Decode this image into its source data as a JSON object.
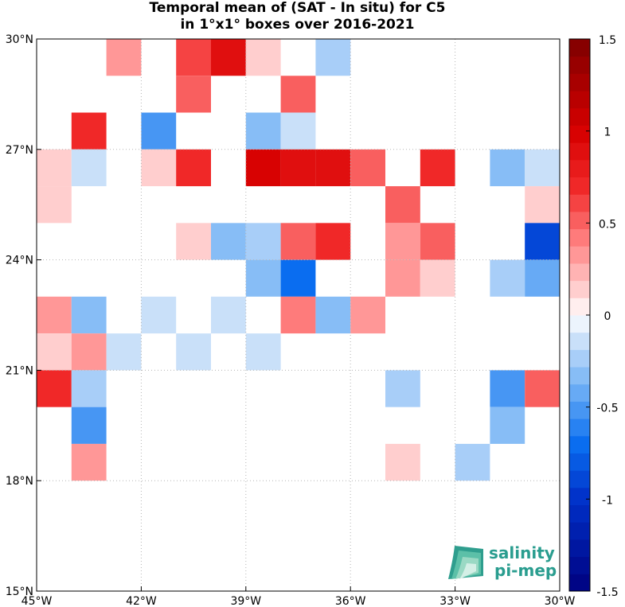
{
  "chart_data": {
    "type": "heatmap",
    "title": "Temporal mean of (SAT - In situ) for C5",
    "subtitle": "in 1°x1° boxes over 2016-2021",
    "x_ticks": [
      "45°W",
      "42°W",
      "39°W",
      "36°W",
      "33°W",
      "30°W"
    ],
    "y_ticks": [
      "30°N",
      "27°N",
      "24°N",
      "21°N",
      "18°N",
      "15°N"
    ],
    "xlim": [
      -45,
      -30
    ],
    "ylim": [
      15,
      30
    ],
    "grid": true,
    "colorbar": {
      "ticks": [
        "1.5",
        "1",
        "0.5",
        "0",
        "-0.5",
        "-1",
        "-1.5"
      ],
      "range": [
        -1.5,
        1.5
      ],
      "levels": 32,
      "low_color": "#00007f",
      "mid_color": "#ffffff",
      "high_color": "#7f0000"
    },
    "cells": [
      {
        "lon": -43,
        "lat": 29,
        "value": 0.3
      },
      {
        "lon": -41,
        "lat": 29,
        "value": 0.65
      },
      {
        "lon": -40,
        "lat": 29,
        "value": 0.85
      },
      {
        "lon": -39,
        "lat": 29,
        "value": 0.15
      },
      {
        "lon": -37,
        "lat": 29,
        "value": -0.2
      },
      {
        "lon": -41,
        "lat": 28,
        "value": 0.5
      },
      {
        "lon": -38,
        "lat": 28,
        "value": 0.5
      },
      {
        "lon": -44,
        "lat": 27,
        "value": 0.7
      },
      {
        "lon": -42,
        "lat": 27,
        "value": -0.55
      },
      {
        "lon": -39,
        "lat": 27,
        "value": -0.3
      },
      {
        "lon": -38,
        "lat": 27,
        "value": -0.12
      },
      {
        "lon": -45,
        "lat": 26,
        "value": 0.15
      },
      {
        "lon": -44,
        "lat": 26,
        "value": -0.12
      },
      {
        "lon": -42,
        "lat": 26,
        "value": 0.15
      },
      {
        "lon": -41,
        "lat": 26,
        "value": 0.7
      },
      {
        "lon": -39,
        "lat": 26,
        "value": 0.95
      },
      {
        "lon": -38,
        "lat": 26,
        "value": 0.85
      },
      {
        "lon": -37,
        "lat": 26,
        "value": 0.85
      },
      {
        "lon": -36,
        "lat": 26,
        "value": 0.55
      },
      {
        "lon": -34,
        "lat": 26,
        "value": 0.7
      },
      {
        "lon": -32,
        "lat": 26,
        "value": -0.3
      },
      {
        "lon": -31,
        "lat": 26,
        "value": -0.12
      },
      {
        "lon": -45,
        "lat": 25,
        "value": 0.15
      },
      {
        "lon": -35,
        "lat": 25,
        "value": 0.55
      },
      {
        "lon": -31,
        "lat": 25,
        "value": 0.15
      },
      {
        "lon": -41,
        "lat": 24,
        "value": 0.15
      },
      {
        "lon": -40,
        "lat": 24,
        "value": -0.35
      },
      {
        "lon": -39,
        "lat": 24,
        "value": -0.25
      },
      {
        "lon": -38,
        "lat": 24,
        "value": 0.55
      },
      {
        "lon": -37,
        "lat": 24,
        "value": 0.7
      },
      {
        "lon": -35,
        "lat": 24,
        "value": 0.3
      },
      {
        "lon": -34,
        "lat": 24,
        "value": 0.5
      },
      {
        "lon": -31,
        "lat": 24,
        "value": -0.85
      },
      {
        "lon": -39,
        "lat": 23,
        "value": -0.35
      },
      {
        "lon": -38,
        "lat": 23,
        "value": -0.7
      },
      {
        "lon": -35,
        "lat": 23,
        "value": 0.3
      },
      {
        "lon": -34,
        "lat": 23,
        "value": 0.15
      },
      {
        "lon": -32,
        "lat": 23,
        "value": -0.25
      },
      {
        "lon": -31,
        "lat": 23,
        "value": -0.45
      },
      {
        "lon": -45,
        "lat": 22,
        "value": 0.3
      },
      {
        "lon": -44,
        "lat": 22,
        "value": -0.35
      },
      {
        "lon": -42,
        "lat": 22,
        "value": -0.12
      },
      {
        "lon": -40,
        "lat": 22,
        "value": -0.12
      },
      {
        "lon": -38,
        "lat": 22,
        "value": 0.4
      },
      {
        "lon": -37,
        "lat": 22,
        "value": -0.3
      },
      {
        "lon": -36,
        "lat": 22,
        "value": 0.3
      },
      {
        "lon": -45,
        "lat": 21,
        "value": 0.15
      },
      {
        "lon": -44,
        "lat": 21,
        "value": 0.3
      },
      {
        "lon": -43,
        "lat": 21,
        "value": -0.12
      },
      {
        "lon": -41,
        "lat": 21,
        "value": -0.12
      },
      {
        "lon": -39,
        "lat": 21,
        "value": -0.12
      },
      {
        "lon": -45,
        "lat": 20,
        "value": 0.7
      },
      {
        "lon": -44,
        "lat": 20,
        "value": -0.25
      },
      {
        "lon": -35,
        "lat": 20,
        "value": -0.25
      },
      {
        "lon": -32,
        "lat": 20,
        "value": -0.5
      },
      {
        "lon": -31,
        "lat": 20,
        "value": 0.55
      },
      {
        "lon": -44,
        "lat": 19,
        "value": -0.5
      },
      {
        "lon": -32,
        "lat": 19,
        "value": -0.35
      },
      {
        "lon": -44,
        "lat": 18,
        "value": 0.3
      },
      {
        "lon": -35,
        "lat": 18,
        "value": 0.15
      },
      {
        "lon": -33,
        "lat": 18,
        "value": -0.25
      }
    ]
  },
  "logo": {
    "line1": "salinity",
    "line2": "pi-mep",
    "color": "#2a9d8f"
  }
}
